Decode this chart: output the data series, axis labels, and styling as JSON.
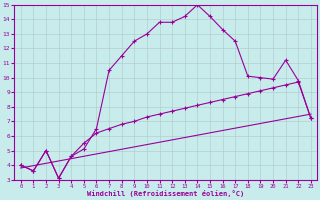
{
  "xlabel": "Windchill (Refroidissement éolien,°C)",
  "background_color": "#c8ecec",
  "line_color": "#990099",
  "xlim": [
    -0.5,
    23.5
  ],
  "ylim": [
    3,
    15
  ],
  "x_ticks": [
    0,
    1,
    2,
    3,
    4,
    5,
    6,
    7,
    8,
    9,
    10,
    11,
    12,
    13,
    14,
    15,
    16,
    17,
    18,
    19,
    20,
    21,
    22,
    23
  ],
  "y_ticks": [
    3,
    4,
    5,
    6,
    7,
    8,
    9,
    10,
    11,
    12,
    13,
    14,
    15
  ],
  "series1_x": [
    0,
    1,
    2,
    3,
    4,
    5,
    6,
    7,
    8,
    9,
    10,
    11,
    12,
    13,
    14,
    15,
    16,
    17,
    18,
    19,
    20,
    21,
    22,
    23
  ],
  "series1_y": [
    4.0,
    3.6,
    5.0,
    3.1,
    4.6,
    5.1,
    6.5,
    10.5,
    11.5,
    12.5,
    13.0,
    13.8,
    13.8,
    14.2,
    15.0,
    14.2,
    13.3,
    12.5,
    10.1,
    10.0,
    9.9,
    11.2,
    9.8,
    7.2
  ],
  "series2_x": [
    0,
    1,
    2,
    3,
    4,
    5,
    6,
    7,
    8,
    9,
    10,
    11,
    12,
    13,
    14,
    15,
    16,
    17,
    18,
    19,
    20,
    21,
    22,
    23
  ],
  "series2_y": [
    4.0,
    3.6,
    5.0,
    3.1,
    4.6,
    5.5,
    6.2,
    6.5,
    6.8,
    7.0,
    7.3,
    7.5,
    7.7,
    7.9,
    8.1,
    8.3,
    8.5,
    8.7,
    8.9,
    9.1,
    9.3,
    9.5,
    9.7,
    7.2
  ],
  "series3_x": [
    0,
    23
  ],
  "series3_y": [
    3.8,
    7.5
  ],
  "grid_color": "#b0c8c8"
}
